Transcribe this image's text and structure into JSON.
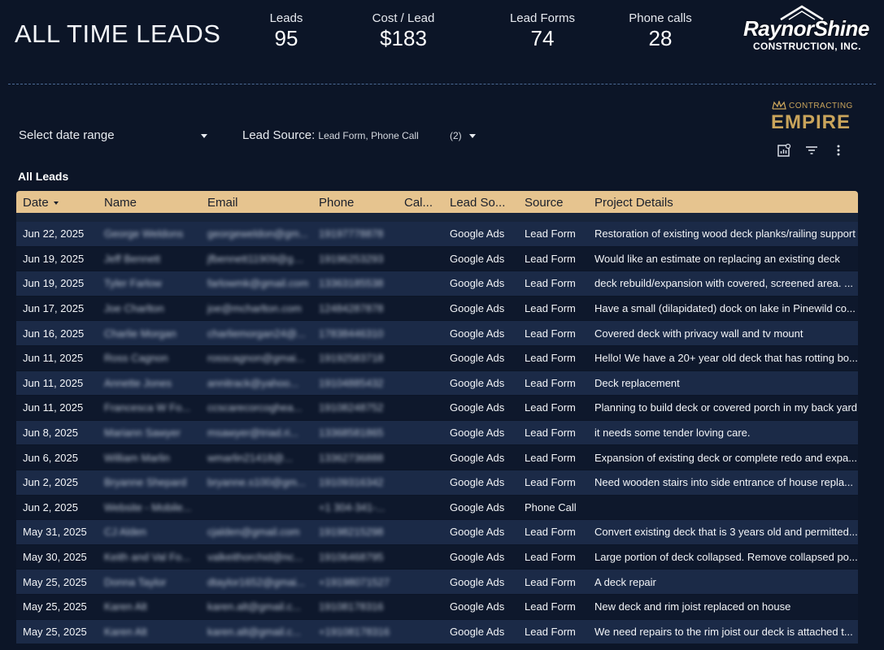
{
  "header": {
    "title": "ALL TIME LEADS",
    "kpis": [
      {
        "label": "Leads",
        "value": "95"
      },
      {
        "label": "Cost / Lead",
        "value": "$183"
      },
      {
        "label": "Lead Forms",
        "value": "74"
      },
      {
        "label": "Phone calls",
        "value": "28"
      }
    ],
    "logo_brand": {
      "name": "RaynorShine",
      "tagline": "CONSTRUCTION, INC."
    },
    "logo_secondary": {
      "top": "CONTRACTING",
      "main": "EMPIRE"
    }
  },
  "controls": {
    "date_range": "Select date range",
    "lead_source_label": "Lead Source:",
    "lead_source_value": "Lead Form, Phone Call",
    "lead_source_count": "(2)"
  },
  "table": {
    "title": "All Leads",
    "columns": [
      "Date",
      "Name",
      "Email",
      "Phone",
      "Cal...",
      "Lead So...",
      "Source",
      "Project Details"
    ],
    "rows": [
      {
        "date": "Jun 22, 2025",
        "name": "George Weldons",
        "email": "georgeweldon@gm...",
        "phone": "19197778878",
        "call": "",
        "lead_source": "Google Ads",
        "source": "Lead Form",
        "details": "Restoration of existing wood deck planks/railing support"
      },
      {
        "date": "Jun 19, 2025",
        "name": "Jeff Bennett",
        "email": "jfbennett11909@gma...",
        "phone": "19196253293",
        "call": "",
        "lead_source": "Google Ads",
        "source": "Lead Form",
        "details": "Would like an estimate on replacing an existing deck"
      },
      {
        "date": "Jun 19, 2025",
        "name": "Tyler Farlow",
        "email": "farlowmk@gmail.com",
        "phone": "13363185538",
        "call": "",
        "lead_source": "Google Ads",
        "source": "Lead Form",
        "details": "deck rebuild/expansion with covered, screened area. ..."
      },
      {
        "date": "Jun 17, 2025",
        "name": "Joe Charlton",
        "email": "joe@mcharlton.com",
        "phone": "12484287878",
        "call": "",
        "lead_source": "Google Ads",
        "source": "Lead Form",
        "details": "Have a small (dilapidated) dock on lake in Pinewild co..."
      },
      {
        "date": "Jun 16, 2025",
        "name": "Charlie Morgan",
        "email": "charliemorgan24@...",
        "phone": "17838446310",
        "call": "",
        "lead_source": "Google Ads",
        "source": "Lead Form",
        "details": "Covered deck with privacy wall and tv mount"
      },
      {
        "date": "Jun 11, 2025",
        "name": "Ross Cagnon",
        "email": "rosscagnon@gmai...",
        "phone": "19192583718",
        "call": "",
        "lead_source": "Google Ads",
        "source": "Lead Form",
        "details": "Hello! We have a 20+ year old deck that has rotting bo..."
      },
      {
        "date": "Jun 11, 2025",
        "name": "Annette Jones",
        "email": "annitrack@yahoo...",
        "phone": "19104885432",
        "call": "",
        "lead_source": "Google Ads",
        "source": "Lead Form",
        "details": "Deck replacement"
      },
      {
        "date": "Jun 11, 2025",
        "name": "Francesca W Fo...",
        "email": "ccscarecorcoghea...",
        "phone": "19108248752",
        "call": "",
        "lead_source": "Google Ads",
        "source": "Lead Form",
        "details": "Planning to build deck or covered porch in my back yard"
      },
      {
        "date": "Jun 8, 2025",
        "name": "Mariann Sawyer",
        "email": "msawyer@triad.ri...",
        "phone": "13368581865",
        "call": "",
        "lead_source": "Google Ads",
        "source": "Lead Form",
        "details": "it needs some tender loving care."
      },
      {
        "date": "Jun 6, 2025",
        "name": "William Marlin",
        "email": "wmarlin21418@...",
        "phone": "13362736888",
        "call": "",
        "lead_source": "Google Ads",
        "source": "Lead Form",
        "details": "Expansion of existing deck or complete redo and expa..."
      },
      {
        "date": "Jun 2, 2025",
        "name": "Bryanne Shepard",
        "email": "bryanne.s100@gm...",
        "phone": "19109316342",
        "call": "",
        "lead_source": "Google Ads",
        "source": "Lead Form",
        "details": "Need wooden stairs into side entrance of house repla..."
      },
      {
        "date": "Jun 2, 2025",
        "name": "Website - Mobile...",
        "email": "",
        "phone": "+1 304-341-...",
        "call": "",
        "lead_source": "Google Ads",
        "source": "Phone Call",
        "details": ""
      },
      {
        "date": "May 31, 2025",
        "name": "CJ Alden",
        "email": "cjalden@gmail.com",
        "phone": "19198215298",
        "call": "",
        "lead_source": "Google Ads",
        "source": "Lead Form",
        "details": "Convert existing deck that is 3 years old and permitted..."
      },
      {
        "date": "May 30, 2025",
        "name": "Keith and Val Fo...",
        "email": "valkeithorchid@nc...",
        "phone": "19106468795",
        "call": "",
        "lead_source": "Google Ads",
        "source": "Lead Form",
        "details": "Large portion of deck collapsed. Remove collapsed po..."
      },
      {
        "date": "May 25, 2025",
        "name": "Donna Taylor",
        "email": "dtaylor1652@gmai...",
        "phone": "+19198071527",
        "call": "",
        "lead_source": "Google Ads",
        "source": "Lead Form",
        "details": "A deck repair"
      },
      {
        "date": "May 25, 2025",
        "name": "Karen Alt",
        "email": "karen.alt@gmail.c...",
        "phone": "19108178316",
        "call": "",
        "lead_source": "Google Ads",
        "source": "Lead Form",
        "details": "New deck and rim joist replaced on house"
      },
      {
        "date": "May 25, 2025",
        "name": "Karen Alt",
        "email": "karen.alt@gmail.c...",
        "phone": "+19108178316",
        "call": "",
        "lead_source": "Google Ads",
        "source": "Lead Form",
        "details": "We need repairs to the rim joist our deck is attached t..."
      }
    ]
  },
  "colors": {
    "background": "#0c1527",
    "header_row": "#e6c48f",
    "row_alt": "#1b2a47",
    "accent_gold": "#c9a45b"
  }
}
